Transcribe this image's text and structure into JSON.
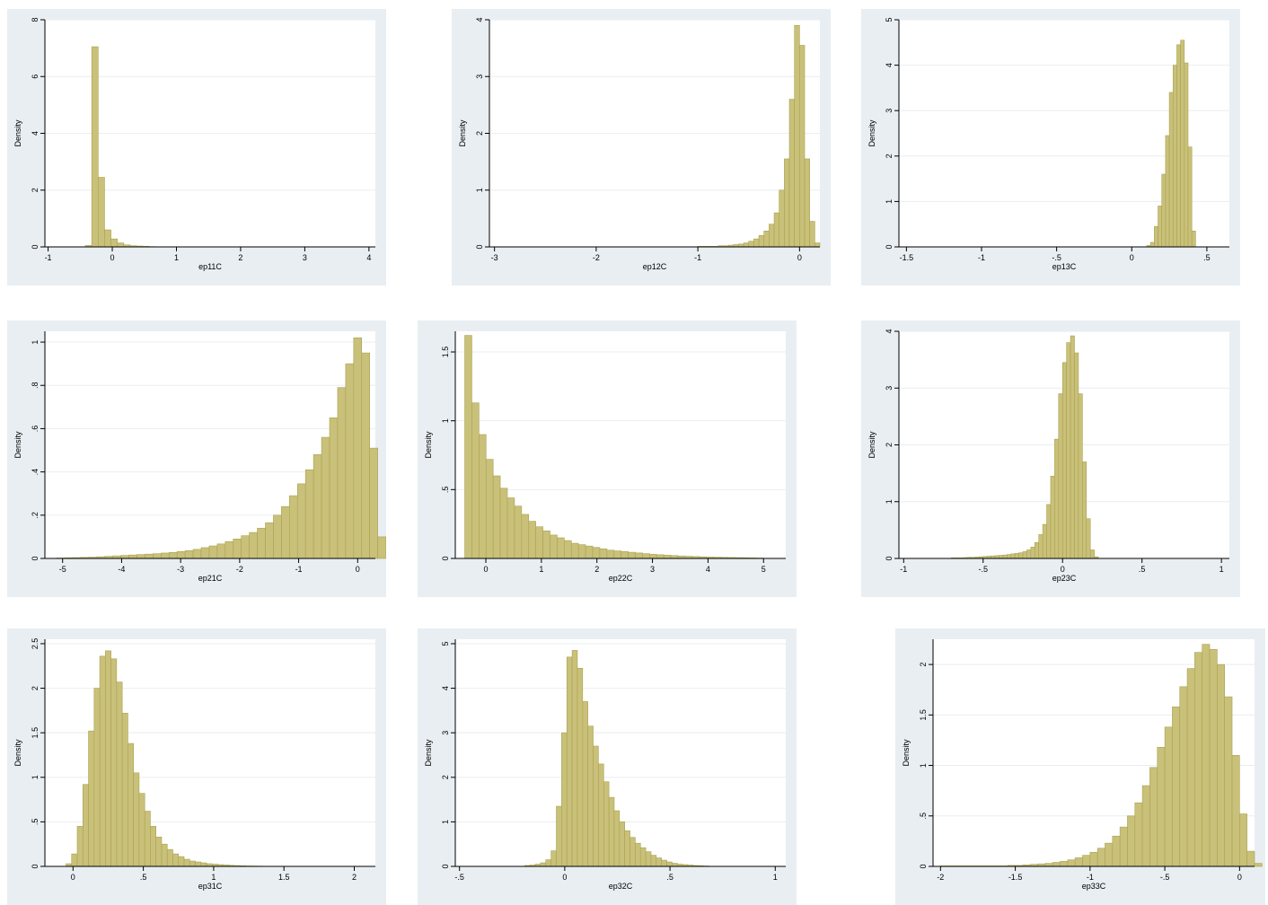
{
  "chart_data": [
    {
      "type": "bar",
      "xlabel": "ep11C",
      "ylabel": "Density",
      "xlim": [
        -1.05,
        4.1
      ],
      "ylim": [
        0,
        8
      ],
      "xticks": [
        {
          "v": -1,
          "label": "-1"
        },
        {
          "v": 0,
          "label": "0"
        },
        {
          "v": 1,
          "label": "1"
        },
        {
          "v": 2,
          "label": "2"
        },
        {
          "v": 3,
          "label": "3"
        },
        {
          "v": 4,
          "label": "4"
        }
      ],
      "yticks": [
        {
          "v": 0,
          "label": "0"
        },
        {
          "v": 2,
          "label": "2"
        },
        {
          "v": 4,
          "label": "4"
        },
        {
          "v": 6,
          "label": "6"
        },
        {
          "v": 8,
          "label": "8"
        }
      ],
      "bin_start": -0.42,
      "bin_width": 0.1,
      "values": [
        0.05,
        7.05,
        2.45,
        0.6,
        0.28,
        0.14,
        0.07,
        0.04,
        0.03,
        0.02,
        0.01
      ]
    },
    {
      "type": "bar",
      "xlabel": "ep12C",
      "ylabel": "Density",
      "xlim": [
        -3.05,
        0.2
      ],
      "ylim": [
        0,
        4
      ],
      "xticks": [
        {
          "v": -3,
          "label": "-3"
        },
        {
          "v": -2,
          "label": "-2"
        },
        {
          "v": -1,
          "label": "-1"
        },
        {
          "v": 0,
          "label": "0"
        }
      ],
      "yticks": [
        {
          "v": 0,
          "label": "0"
        },
        {
          "v": 1,
          "label": "1"
        },
        {
          "v": 2,
          "label": "2"
        },
        {
          "v": 3,
          "label": "3"
        },
        {
          "v": 4,
          "label": "4"
        }
      ],
      "bin_start": -1.0,
      "bin_width": 0.05,
      "values": [
        0.01,
        0.01,
        0.01,
        0.01,
        0.02,
        0.02,
        0.03,
        0.04,
        0.05,
        0.07,
        0.1,
        0.14,
        0.2,
        0.28,
        0.4,
        0.6,
        1.0,
        1.55,
        2.6,
        3.9,
        3.55,
        1.55,
        0.45,
        0.07
      ]
    },
    {
      "type": "bar",
      "xlabel": "ep13C",
      "ylabel": "Density",
      "xlim": [
        -1.55,
        0.65
      ],
      "ylim": [
        0,
        5
      ],
      "xticks": [
        {
          "v": -1.5,
          "label": "-1.5"
        },
        {
          "v": -1,
          "label": "-1"
        },
        {
          "v": -0.5,
          "label": "-.5"
        },
        {
          "v": 0,
          "label": "0"
        },
        {
          "v": 0.5,
          "label": ".5"
        }
      ],
      "yticks": [
        {
          "v": 0,
          "label": "0"
        },
        {
          "v": 1,
          "label": "1"
        },
        {
          "v": 2,
          "label": "2"
        },
        {
          "v": 3,
          "label": "3"
        },
        {
          "v": 4,
          "label": "4"
        },
        {
          "v": 5,
          "label": "5"
        }
      ],
      "bin_start": 0.1,
      "bin_width": 0.025,
      "values": [
        0.03,
        0.1,
        0.45,
        0.9,
        1.6,
        2.45,
        3.4,
        4.0,
        4.45,
        4.55,
        4.05,
        2.2,
        0.35
      ]
    },
    {
      "type": "bar",
      "xlabel": "ep21C",
      "ylabel": "Density",
      "xlim": [
        -5.3,
        0.3
      ],
      "ylim": [
        0,
        1.05
      ],
      "xticks": [
        {
          "v": -5,
          "label": "-5"
        },
        {
          "v": -4,
          "label": "-4"
        },
        {
          "v": -3,
          "label": "-3"
        },
        {
          "v": -2,
          "label": "-2"
        },
        {
          "v": -1,
          "label": "-1"
        },
        {
          "v": 0,
          "label": "0"
        }
      ],
      "yticks": [
        {
          "v": 0,
          "label": "0"
        },
        {
          "v": 0.2,
          "label": ".2"
        },
        {
          "v": 0.4,
          "label": ".4"
        },
        {
          "v": 0.6,
          "label": ".6"
        },
        {
          "v": 0.8,
          "label": ".8"
        },
        {
          "v": 1,
          "label": "1"
        }
      ],
      "bin_start": -5.1,
      "bin_width": 0.136,
      "values": [
        0.002,
        0.003,
        0.004,
        0.005,
        0.006,
        0.008,
        0.01,
        0.012,
        0.014,
        0.016,
        0.018,
        0.02,
        0.022,
        0.025,
        0.028,
        0.032,
        0.036,
        0.042,
        0.05,
        0.058,
        0.067,
        0.078,
        0.09,
        0.105,
        0.12,
        0.14,
        0.165,
        0.2,
        0.24,
        0.29,
        0.345,
        0.41,
        0.48,
        0.56,
        0.65,
        0.79,
        0.9,
        1.02,
        0.95,
        0.51,
        0.1
      ]
    },
    {
      "type": "bar",
      "xlabel": "ep22C",
      "ylabel": "Density",
      "xlim": [
        -0.55,
        5.4
      ],
      "ylim": [
        0,
        1.65
      ],
      "xticks": [
        {
          "v": 0,
          "label": "0"
        },
        {
          "v": 1,
          "label": "1"
        },
        {
          "v": 2,
          "label": "2"
        },
        {
          "v": 3,
          "label": "3"
        },
        {
          "v": 4,
          "label": "4"
        },
        {
          "v": 5,
          "label": "5"
        }
      ],
      "yticks": [
        {
          "v": 0,
          "label": "0"
        },
        {
          "v": 0.5,
          "label": ".5"
        },
        {
          "v": 1,
          "label": "1"
        },
        {
          "v": 1.5,
          "label": "1.5"
        }
      ],
      "bin_start": -0.38,
      "bin_width": 0.128,
      "values": [
        1.62,
        1.13,
        0.9,
        0.72,
        0.6,
        0.51,
        0.44,
        0.38,
        0.32,
        0.27,
        0.23,
        0.2,
        0.17,
        0.15,
        0.13,
        0.11,
        0.1,
        0.09,
        0.08,
        0.07,
        0.06,
        0.055,
        0.05,
        0.045,
        0.04,
        0.035,
        0.03,
        0.027,
        0.024,
        0.021,
        0.018,
        0.016,
        0.014,
        0.012,
        0.01,
        0.009,
        0.008,
        0.007,
        0.006,
        0.005,
        0.004,
        0.003
      ]
    },
    {
      "type": "bar",
      "xlabel": "ep23C",
      "ylabel": "Density",
      "xlim": [
        -1.03,
        1.05
      ],
      "ylim": [
        0,
        4
      ],
      "xticks": [
        {
          "v": -1,
          "label": "-1"
        },
        {
          "v": -0.5,
          "label": "-.5"
        },
        {
          "v": 0,
          "label": "0"
        },
        {
          "v": 0.5,
          "label": ".5"
        },
        {
          "v": 1,
          "label": "1"
        }
      ],
      "yticks": [
        {
          "v": 0,
          "label": "0"
        },
        {
          "v": 1,
          "label": "1"
        },
        {
          "v": 2,
          "label": "2"
        },
        {
          "v": 3,
          "label": "3"
        },
        {
          "v": 4,
          "label": "4"
        }
      ],
      "bin_start": -0.7,
      "bin_width": 0.025,
      "values": [
        0.01,
        0.01,
        0.01,
        0.015,
        0.02,
        0.02,
        0.025,
        0.03,
        0.035,
        0.04,
        0.045,
        0.05,
        0.055,
        0.06,
        0.07,
        0.08,
        0.09,
        0.1,
        0.12,
        0.15,
        0.2,
        0.28,
        0.42,
        0.6,
        0.95,
        1.45,
        2.1,
        2.9,
        3.45,
        3.8,
        3.92,
        3.62,
        2.9,
        1.7,
        0.7,
        0.15,
        0.03
      ]
    },
    {
      "type": "bar",
      "xlabel": "ep31C",
      "ylabel": "Density",
      "xlim": [
        -0.2,
        2.15
      ],
      "ylim": [
        0,
        2.55
      ],
      "xticks": [
        {
          "v": 0,
          "label": "0"
        },
        {
          "v": 0.5,
          "label": ".5"
        },
        {
          "v": 1,
          "label": "1"
        },
        {
          "v": 1.5,
          "label": "1.5"
        },
        {
          "v": 2,
          "label": "2"
        }
      ],
      "yticks": [
        {
          "v": 0,
          "label": "0"
        },
        {
          "v": 0.5,
          "label": ".5"
        },
        {
          "v": 1,
          "label": "1"
        },
        {
          "v": 1.5,
          "label": "1.5"
        },
        {
          "v": 2,
          "label": "2"
        },
        {
          "v": 2.5,
          "label": "2.5"
        }
      ],
      "bin_start": -0.05,
      "bin_width": 0.04,
      "values": [
        0.03,
        0.14,
        0.45,
        0.92,
        1.52,
        2.0,
        2.36,
        2.42,
        2.33,
        2.07,
        1.72,
        1.38,
        1.05,
        0.82,
        0.62,
        0.45,
        0.33,
        0.25,
        0.19,
        0.14,
        0.11,
        0.08,
        0.06,
        0.05,
        0.04,
        0.03,
        0.025,
        0.02,
        0.016,
        0.012,
        0.009,
        0.007,
        0.005,
        0.004,
        0.003,
        0.002
      ]
    },
    {
      "type": "bar",
      "xlabel": "ep32C",
      "ylabel": "Density",
      "xlim": [
        -0.52,
        1.05
      ],
      "ylim": [
        0,
        5.1
      ],
      "xticks": [
        {
          "v": -0.5,
          "label": "-.5"
        },
        {
          "v": 0,
          "label": "0"
        },
        {
          "v": 0.5,
          "label": ".5"
        },
        {
          "v": 1,
          "label": "1"
        }
      ],
      "yticks": [
        {
          "v": 0,
          "label": "0"
        },
        {
          "v": 1,
          "label": "1"
        },
        {
          "v": 2,
          "label": "2"
        },
        {
          "v": 3,
          "label": "3"
        },
        {
          "v": 4,
          "label": "4"
        },
        {
          "v": 5,
          "label": "5"
        }
      ],
      "bin_start": -0.19,
      "bin_width": 0.025,
      "values": [
        0.02,
        0.03,
        0.05,
        0.08,
        0.15,
        0.35,
        1.35,
        3.0,
        4.7,
        4.85,
        4.45,
        3.7,
        3.15,
        2.7,
        2.3,
        1.9,
        1.55,
        1.25,
        1.0,
        0.8,
        0.65,
        0.52,
        0.42,
        0.33,
        0.25,
        0.19,
        0.14,
        0.1,
        0.07,
        0.05,
        0.04,
        0.03,
        0.02,
        0.015,
        0.01
      ]
    },
    {
      "type": "bar",
      "xlabel": "ep33C",
      "ylabel": "Density",
      "xlim": [
        -2.05,
        0.1
      ],
      "ylim": [
        0,
        2.25
      ],
      "xticks": [
        {
          "v": -2,
          "label": "-2"
        },
        {
          "v": -1.5,
          "label": "-1.5"
        },
        {
          "v": -1,
          "label": "-1"
        },
        {
          "v": -0.5,
          "label": "-.5"
        },
        {
          "v": 0,
          "label": "0"
        }
      ],
      "yticks": [
        {
          "v": 0,
          "label": "0"
        },
        {
          "v": 0.5,
          "label": ".5"
        },
        {
          "v": 1,
          "label": "1"
        },
        {
          "v": 1.5,
          "label": "1.5"
        },
        {
          "v": 2,
          "label": "2"
        }
      ],
      "bin_start": -2.0,
      "bin_width": 0.05,
      "values": [
        0.005,
        0.005,
        0.005,
        0.005,
        0.005,
        0.005,
        0.005,
        0.005,
        0.005,
        0.01,
        0.01,
        0.015,
        0.02,
        0.025,
        0.03,
        0.04,
        0.05,
        0.065,
        0.085,
        0.11,
        0.14,
        0.18,
        0.23,
        0.3,
        0.39,
        0.5,
        0.63,
        0.8,
        0.98,
        1.18,
        1.38,
        1.58,
        1.78,
        1.96,
        2.12,
        2.2,
        2.15,
        2.0,
        1.68,
        1.1,
        0.52,
        0.15,
        0.03
      ]
    }
  ]
}
